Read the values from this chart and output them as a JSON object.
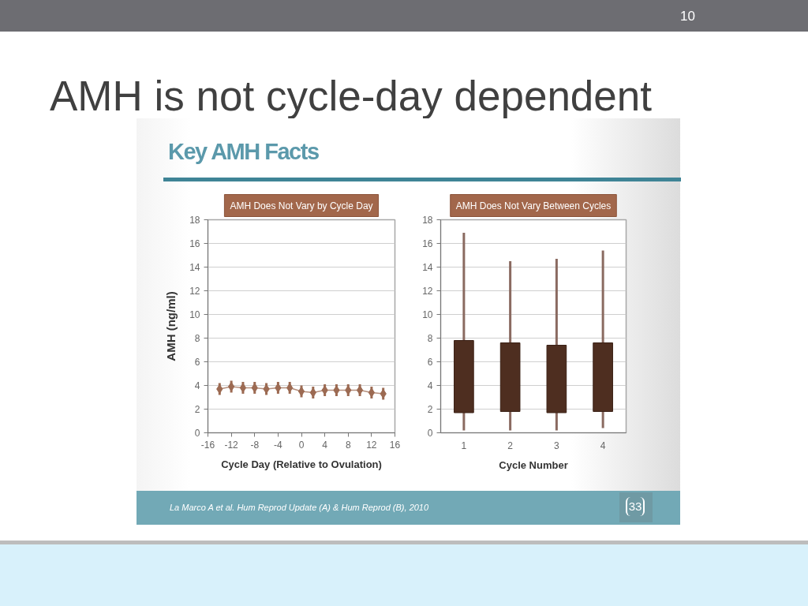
{
  "chart_data": [
    {
      "type": "other",
      "title": "AMH is not cycle-day dependent",
      "subtitle": "Key AMH Facts",
      "annotations": [
        "10",
        "La Marco A et al. Hum Reprod Update (A) & Hum Reprod (B), 2010",
        "33"
      ]
    },
    {
      "type": "line",
      "title": "AMH Does Not Vary by Cycle Day",
      "xlabel": "Cycle Day (Relative to Ovulation)",
      "ylabel": "AMH (ng/ml)",
      "x": [
        -14,
        -12,
        -10,
        -8,
        -6,
        -4,
        -2,
        0,
        2,
        4,
        6,
        8,
        10,
        12,
        14
      ],
      "series": [
        {
          "color": "#9c6a52",
          "values": [
            3.7,
            3.9,
            3.8,
            3.8,
            3.7,
            3.8,
            3.8,
            3.5,
            3.4,
            3.6,
            3.6,
            3.6,
            3.6,
            3.4,
            3.3
          ],
          "errors": [
            0.5,
            0.5,
            0.5,
            0.5,
            0.5,
            0.5,
            0.5,
            0.5,
            0.5,
            0.5,
            0.5,
            0.5,
            0.5,
            0.5,
            0.5
          ]
        }
      ],
      "xlim": [
        -16,
        16
      ],
      "xticks": [
        -16,
        -12,
        -8,
        -4,
        0,
        4,
        8,
        12,
        16
      ],
      "ylim": [
        0,
        18
      ],
      "yticks": [
        0,
        2,
        4,
        6,
        8,
        10,
        12,
        14,
        16,
        18
      ],
      "grid": "y",
      "marker": "diamond",
      "line_style": "solid"
    },
    {
      "type": "box",
      "title": "AMH Does Not Vary Between Cycles",
      "xlabel": "Cycle Number",
      "categories": [
        "1",
        "2",
        "3",
        "4"
      ],
      "series": [
        {
          "color": "#4e2e20",
          "boxes": [
            {
              "low": 0.2,
              "q1": 1.7,
              "q3": 7.8,
              "high": 16.9
            },
            {
              "low": 0.2,
              "q1": 1.8,
              "q3": 7.6,
              "high": 14.5
            },
            {
              "low": 0.2,
              "q1": 1.7,
              "q3": 7.4,
              "high": 14.7
            },
            {
              "low": 0.4,
              "q1": 1.8,
              "q3": 7.6,
              "high": 15.4
            }
          ]
        }
      ],
      "ylim": [
        0,
        18
      ],
      "yticks": [
        0,
        2,
        4,
        6,
        8,
        10,
        12,
        14,
        16,
        18
      ],
      "grid": "y"
    }
  ]
}
